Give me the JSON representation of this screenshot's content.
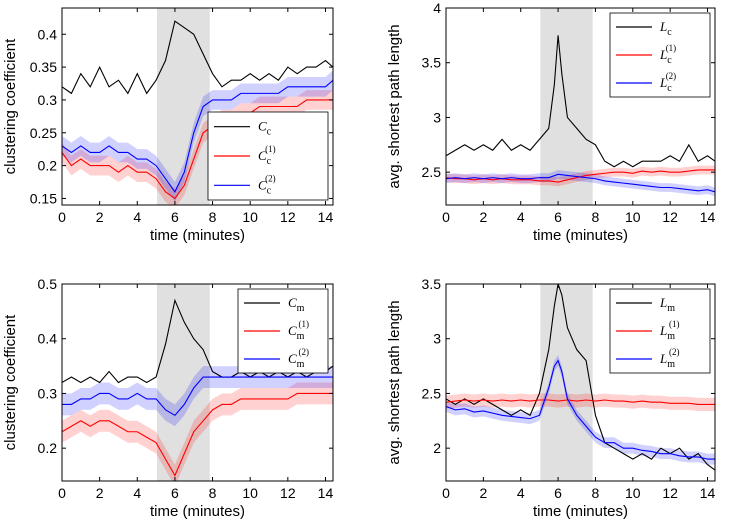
{
  "colors": {
    "observed": "#000000",
    "model1": "#ff0000",
    "model2": "#0000ff",
    "band1": "#ffb0b0",
    "band2": "#b0b0ff",
    "highlight": "#e0e0e0"
  },
  "chart_data": [
    {
      "type": "line",
      "xlabel": "time (minutes)",
      "ylabel": "clustering coefficient",
      "xlim": [
        0,
        14.4
      ],
      "ylim": [
        0.14,
        0.44
      ],
      "xticks": [
        "0",
        "2",
        "4",
        "6",
        "8",
        "10",
        "12",
        "14"
      ],
      "yticks": [
        "0.15",
        "0.2",
        "0.25",
        "0.3",
        "0.35",
        "0.4"
      ],
      "highlight_x": [
        5.05,
        7.85
      ],
      "legend_position": "bottom-right",
      "series": [
        {
          "name": "C_c",
          "base": "C",
          "sub": "c",
          "sup": "",
          "color": "#000000",
          "band": 0,
          "x": [
            0,
            0.5,
            1,
            1.5,
            2,
            2.5,
            3,
            3.5,
            4,
            4.5,
            5,
            5.5,
            6,
            6.5,
            7,
            7.5,
            8,
            8.5,
            9,
            9.5,
            10,
            10.5,
            11,
            11.5,
            12,
            12.5,
            13,
            13.5,
            14,
            14.4
          ],
          "y": [
            0.32,
            0.31,
            0.34,
            0.32,
            0.35,
            0.32,
            0.33,
            0.31,
            0.34,
            0.31,
            0.33,
            0.36,
            0.42,
            0.41,
            0.4,
            0.37,
            0.34,
            0.32,
            0.33,
            0.33,
            0.34,
            0.33,
            0.34,
            0.33,
            0.35,
            0.34,
            0.35,
            0.35,
            0.36,
            0.35
          ]
        },
        {
          "name": "C_c^(1)",
          "base": "C",
          "sub": "c",
          "sup": "(1)",
          "color": "#ff0000",
          "band": 0.015,
          "x": [
            0,
            0.5,
            1,
            1.5,
            2,
            2.5,
            3,
            3.5,
            4,
            4.5,
            5,
            5.5,
            6,
            6.5,
            7,
            7.5,
            8,
            8.5,
            9,
            9.5,
            10,
            10.5,
            11,
            11.5,
            12,
            12.5,
            13,
            13.5,
            14,
            14.4
          ],
          "y": [
            0.22,
            0.2,
            0.21,
            0.2,
            0.2,
            0.2,
            0.19,
            0.2,
            0.19,
            0.19,
            0.18,
            0.16,
            0.15,
            0.17,
            0.21,
            0.25,
            0.26,
            0.27,
            0.27,
            0.28,
            0.28,
            0.29,
            0.29,
            0.29,
            0.29,
            0.29,
            0.3,
            0.3,
            0.3,
            0.3
          ]
        },
        {
          "name": "C_c^(2)",
          "base": "C",
          "sub": "c",
          "sup": "(2)",
          "color": "#0000ff",
          "band": 0.015,
          "x": [
            0,
            0.5,
            1,
            1.5,
            2,
            2.5,
            3,
            3.5,
            4,
            4.5,
            5,
            5.5,
            6,
            6.5,
            7,
            7.5,
            8,
            8.5,
            9,
            9.5,
            10,
            10.5,
            11,
            11.5,
            12,
            12.5,
            13,
            13.5,
            14,
            14.4
          ],
          "y": [
            0.23,
            0.22,
            0.23,
            0.22,
            0.22,
            0.23,
            0.22,
            0.22,
            0.21,
            0.21,
            0.2,
            0.18,
            0.16,
            0.19,
            0.25,
            0.29,
            0.3,
            0.3,
            0.3,
            0.31,
            0.31,
            0.31,
            0.31,
            0.31,
            0.32,
            0.32,
            0.32,
            0.32,
            0.32,
            0.33
          ]
        }
      ]
    },
    {
      "type": "line",
      "xlabel": "time (minutes)",
      "ylabel": "avg. shortest path length",
      "xlim": [
        0,
        14.4
      ],
      "ylim": [
        2.2,
        4.0
      ],
      "xticks": [
        "0",
        "2",
        "4",
        "6",
        "8",
        "10",
        "12",
        "14"
      ],
      "yticks": [
        "2.5",
        "3",
        "3.5",
        "4"
      ],
      "highlight_x": [
        5.05,
        7.85
      ],
      "legend_position": "top-right",
      "series": [
        {
          "name": "L_c",
          "base": "L",
          "sub": "c",
          "sup": "",
          "color": "#000000",
          "band": 0,
          "x": [
            0,
            0.5,
            1,
            1.5,
            2,
            2.5,
            3,
            3.5,
            4,
            4.5,
            5,
            5.5,
            5.8,
            6,
            6.2,
            6.5,
            7,
            7.5,
            8,
            8.5,
            9,
            9.5,
            10,
            10.5,
            11,
            11.5,
            12,
            12.5,
            13,
            13.5,
            14,
            14.4
          ],
          "y": [
            2.65,
            2.7,
            2.75,
            2.7,
            2.75,
            2.7,
            2.8,
            2.7,
            2.75,
            2.7,
            2.8,
            2.9,
            3.3,
            3.75,
            3.4,
            3.0,
            2.9,
            2.8,
            2.75,
            2.6,
            2.55,
            2.6,
            2.55,
            2.6,
            2.6,
            2.6,
            2.65,
            2.6,
            2.75,
            2.6,
            2.65,
            2.6
          ]
        },
        {
          "name": "L_c^(1)",
          "base": "L",
          "sub": "c",
          "sup": "(1)",
          "color": "#ff0000",
          "band": 0.04,
          "x": [
            0,
            0.5,
            1,
            1.5,
            2,
            2.5,
            3,
            3.5,
            4,
            4.5,
            5,
            5.5,
            6,
            6.5,
            7,
            7.5,
            8,
            8.5,
            9,
            9.5,
            10,
            10.5,
            11,
            11.5,
            12,
            12.5,
            13,
            13.5,
            14,
            14.4
          ],
          "y": [
            2.45,
            2.44,
            2.44,
            2.43,
            2.44,
            2.43,
            2.44,
            2.43,
            2.43,
            2.43,
            2.42,
            2.42,
            2.41,
            2.43,
            2.45,
            2.47,
            2.48,
            2.49,
            2.5,
            2.5,
            2.49,
            2.51,
            2.5,
            2.51,
            2.5,
            2.5,
            2.51,
            2.52,
            2.52,
            2.52
          ]
        },
        {
          "name": "L_c^(2)",
          "base": "L",
          "sub": "c",
          "sup": "(2)",
          "color": "#0000ff",
          "band": 0.04,
          "x": [
            0,
            0.5,
            1,
            1.5,
            2,
            2.5,
            3,
            3.5,
            4,
            4.5,
            5,
            5.5,
            6,
            6.5,
            7,
            7.5,
            8,
            8.5,
            9,
            9.5,
            10,
            10.5,
            11,
            11.5,
            12,
            12.5,
            13,
            13.5,
            14,
            14.4
          ],
          "y": [
            2.44,
            2.45,
            2.44,
            2.45,
            2.44,
            2.45,
            2.44,
            2.45,
            2.44,
            2.44,
            2.45,
            2.45,
            2.48,
            2.47,
            2.46,
            2.45,
            2.44,
            2.42,
            2.41,
            2.4,
            2.39,
            2.38,
            2.37,
            2.36,
            2.36,
            2.35,
            2.34,
            2.33,
            2.34,
            2.32
          ]
        }
      ]
    },
    {
      "type": "line",
      "xlabel": "time (minutes)",
      "ylabel": "clustering coefficient",
      "xlim": [
        0,
        14.4
      ],
      "ylim": [
        0.14,
        0.5
      ],
      "xticks": [
        "0",
        "2",
        "4",
        "6",
        "8",
        "10",
        "12",
        "14"
      ],
      "yticks": [
        "0.2",
        "0.3",
        "0.4",
        "0.5"
      ],
      "highlight_x": [
        5.05,
        7.85
      ],
      "legend_position": "top-right",
      "series": [
        {
          "name": "C_m",
          "base": "C",
          "sub": "m",
          "sup": "",
          "color": "#000000",
          "band": 0,
          "x": [
            0,
            0.5,
            1,
            1.5,
            2,
            2.5,
            3,
            3.5,
            4,
            4.5,
            5,
            5.5,
            6,
            6.5,
            7,
            7.5,
            8,
            8.5,
            9,
            9.5,
            10,
            10.5,
            11,
            11.5,
            12,
            12.5,
            13,
            13.5,
            14,
            14.4
          ],
          "y": [
            0.32,
            0.33,
            0.32,
            0.33,
            0.32,
            0.34,
            0.32,
            0.33,
            0.33,
            0.32,
            0.33,
            0.39,
            0.47,
            0.43,
            0.4,
            0.38,
            0.34,
            0.33,
            0.33,
            0.34,
            0.33,
            0.34,
            0.33,
            0.34,
            0.33,
            0.34,
            0.33,
            0.34,
            0.34,
            0.35
          ]
        },
        {
          "name": "C_m^(1)",
          "base": "C",
          "sub": "m",
          "sup": "(1)",
          "color": "#ff0000",
          "band": 0.02,
          "x": [
            0,
            0.5,
            1,
            1.5,
            2,
            2.5,
            3,
            3.5,
            4,
            4.5,
            5,
            5.5,
            6,
            6.5,
            7,
            7.5,
            8,
            8.5,
            9,
            9.5,
            10,
            10.5,
            11,
            11.5,
            12,
            12.5,
            13,
            13.5,
            14,
            14.4
          ],
          "y": [
            0.23,
            0.24,
            0.25,
            0.24,
            0.25,
            0.25,
            0.24,
            0.23,
            0.23,
            0.22,
            0.21,
            0.18,
            0.15,
            0.19,
            0.23,
            0.25,
            0.27,
            0.28,
            0.28,
            0.29,
            0.29,
            0.29,
            0.29,
            0.29,
            0.29,
            0.3,
            0.3,
            0.3,
            0.3,
            0.3
          ]
        },
        {
          "name": "C_m^(2)",
          "base": "C",
          "sub": "m",
          "sup": "(2)",
          "color": "#0000ff",
          "band": 0.02,
          "x": [
            0,
            0.5,
            1,
            1.5,
            2,
            2.5,
            3,
            3.5,
            4,
            4.5,
            5,
            5.5,
            6,
            6.5,
            7,
            7.5,
            8,
            8.5,
            9,
            9.5,
            10,
            10.5,
            11,
            11.5,
            12,
            12.5,
            13,
            13.5,
            14,
            14.4
          ],
          "y": [
            0.28,
            0.28,
            0.29,
            0.29,
            0.3,
            0.3,
            0.29,
            0.29,
            0.3,
            0.29,
            0.29,
            0.27,
            0.26,
            0.28,
            0.31,
            0.33,
            0.33,
            0.33,
            0.33,
            0.33,
            0.33,
            0.33,
            0.33,
            0.33,
            0.33,
            0.33,
            0.33,
            0.33,
            0.33,
            0.33
          ]
        }
      ]
    },
    {
      "type": "line",
      "xlabel": "time (minutes)",
      "ylabel": "avg. shortest path length",
      "xlim": [
        0,
        14.4
      ],
      "ylim": [
        1.7,
        3.5
      ],
      "xticks": [
        "0",
        "2",
        "4",
        "6",
        "8",
        "10",
        "12",
        "14"
      ],
      "yticks": [
        "2",
        "2.5",
        "3",
        "3.5"
      ],
      "highlight_x": [
        5.05,
        7.85
      ],
      "legend_position": "top-right",
      "series": [
        {
          "name": "L_m",
          "base": "L",
          "sub": "m",
          "sup": "",
          "color": "#000000",
          "band": 0,
          "x": [
            0,
            0.5,
            1,
            1.5,
            2,
            2.5,
            3,
            3.5,
            4,
            4.5,
            5,
            5.5,
            5.8,
            6,
            6.2,
            6.5,
            7,
            7.5,
            8,
            8.5,
            9,
            9.5,
            10,
            10.5,
            11,
            11.5,
            12,
            12.5,
            13,
            13.5,
            14,
            14.4
          ],
          "y": [
            2.45,
            2.4,
            2.45,
            2.4,
            2.45,
            2.4,
            2.35,
            2.3,
            2.35,
            2.3,
            2.5,
            2.9,
            3.3,
            3.5,
            3.4,
            3.1,
            2.9,
            2.8,
            2.3,
            2.05,
            2.0,
            1.95,
            1.9,
            1.95,
            1.9,
            2.0,
            1.95,
            2.0,
            1.9,
            1.95,
            1.85,
            1.8
          ]
        },
        {
          "name": "L_m^(1)",
          "base": "L",
          "sub": "m",
          "sup": "(1)",
          "color": "#ff0000",
          "band": 0.06,
          "x": [
            0,
            0.5,
            1,
            1.5,
            2,
            2.5,
            3,
            3.5,
            4,
            4.5,
            5,
            5.5,
            6,
            6.5,
            7,
            7.5,
            8,
            8.5,
            9,
            9.5,
            10,
            10.5,
            11,
            11.5,
            12,
            12.5,
            13,
            13.5,
            14,
            14.4
          ],
          "y": [
            2.42,
            2.43,
            2.44,
            2.43,
            2.44,
            2.43,
            2.44,
            2.43,
            2.44,
            2.43,
            2.44,
            2.44,
            2.43,
            2.44,
            2.43,
            2.44,
            2.43,
            2.44,
            2.43,
            2.43,
            2.42,
            2.43,
            2.42,
            2.42,
            2.41,
            2.41,
            2.41,
            2.4,
            2.4,
            2.4
          ]
        },
        {
          "name": "L_m^(2)",
          "base": "L",
          "sub": "m",
          "sup": "(2)",
          "color": "#0000ff",
          "band": 0.05,
          "x": [
            0,
            0.5,
            1,
            1.5,
            2,
            2.5,
            3,
            3.5,
            4,
            4.5,
            5,
            5.5,
            5.8,
            6,
            6.2,
            6.5,
            7,
            7.5,
            8,
            8.5,
            9,
            9.5,
            10,
            10.5,
            11,
            11.5,
            12,
            12.5,
            13,
            13.5,
            14,
            14.4
          ],
          "y": [
            2.38,
            2.35,
            2.36,
            2.33,
            2.34,
            2.32,
            2.3,
            2.29,
            2.28,
            2.27,
            2.3,
            2.55,
            2.75,
            2.8,
            2.7,
            2.45,
            2.3,
            2.2,
            2.1,
            2.05,
            2.05,
            2.0,
            2.0,
            1.98,
            1.97,
            1.95,
            1.95,
            1.93,
            1.92,
            1.92,
            1.9,
            1.9
          ]
        }
      ]
    }
  ]
}
